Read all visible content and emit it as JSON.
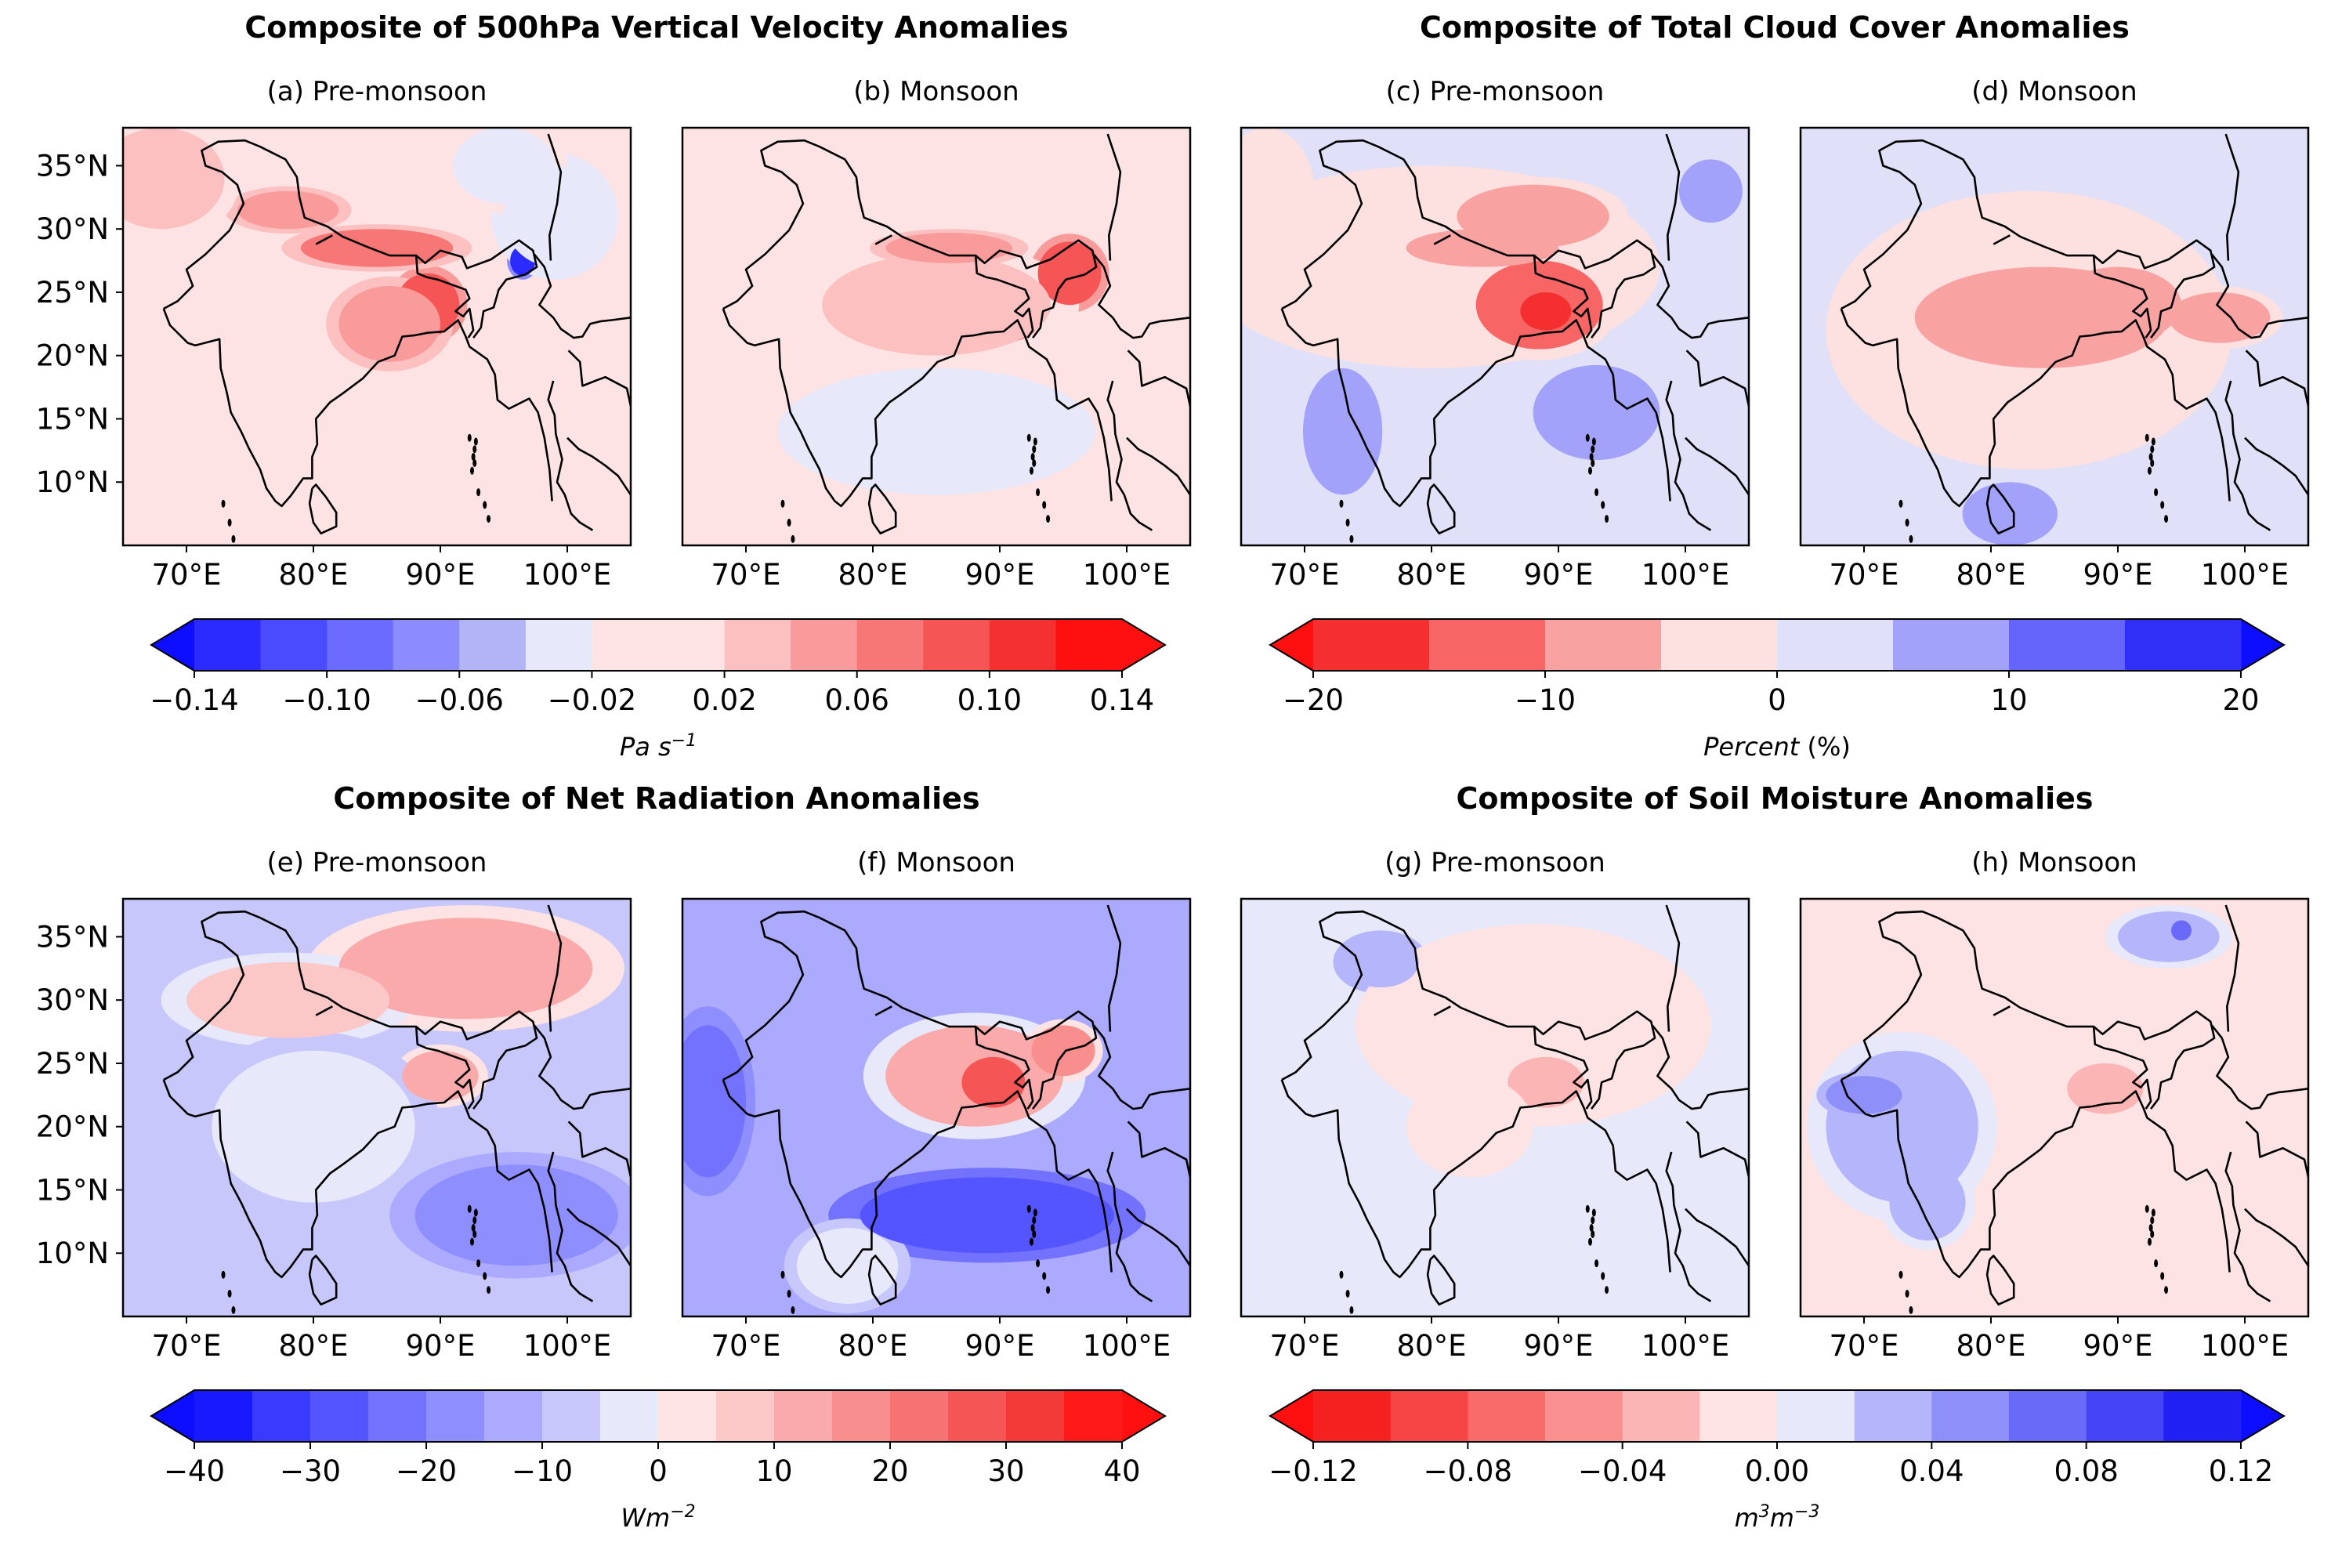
{
  "groups": [
    {
      "title": "Composite of 500hPa Vertical Velocity Anomalies",
      "colorbar": 0
    },
    {
      "title": "Composite of Total Cloud Cover Anomalies",
      "colorbar": 1
    },
    {
      "title": "Composite of Net Radiation Anomalies",
      "colorbar": 2
    },
    {
      "title": "Composite of Soil Moisture Anomalies",
      "colorbar": 3
    }
  ],
  "colors": {
    "blue_full": "#0d0dff",
    "red_full": "#ff1010",
    "neutral_blue": "#e8e8fb",
    "neutral_red": "#fde3e3",
    "coast": "#000000"
  },
  "chart_data": [
    {
      "type": "heatmap",
      "id": "a",
      "title": "(a) Pre-monsoon",
      "variable": "500hPa vertical velocity anomaly",
      "units": "Pa s⁻¹",
      "xlim": [
        65,
        105
      ],
      "ylim": [
        5,
        38
      ],
      "xticks": [
        "70°E",
        "80°E",
        "90°E",
        "100°E"
      ],
      "yticks": [
        "35°N",
        "30°N",
        "25°N",
        "20°N",
        "15°N",
        "10°N"
      ],
      "background": -0.01,
      "features": [
        {
          "lon": 89,
          "lat": 24,
          "rx": 2.5,
          "ry": 2.5,
          "v": 0.09
        },
        {
          "lon": 86,
          "lat": 22.5,
          "rx": 4,
          "ry": 3,
          "v": 0.05
        },
        {
          "lon": 85,
          "lat": 28.5,
          "rx": 6,
          "ry": 1.5,
          "v": 0.06
        },
        {
          "lon": 78,
          "lat": 31.5,
          "rx": 4,
          "ry": 1.5,
          "v": 0.05
        },
        {
          "lon": 68,
          "lat": 34,
          "rx": 5,
          "ry": 4,
          "v": 0.03
        },
        {
          "lon": 96.5,
          "lat": 27.5,
          "rx": 1,
          "ry": 1.2,
          "v": -0.14
        },
        {
          "lon": 99,
          "lat": 31,
          "rx": 4,
          "ry": 4,
          "v": -0.04
        },
        {
          "lon": 95,
          "lat": 35,
          "rx": 4,
          "ry": 3,
          "v": -0.03
        }
      ]
    },
    {
      "type": "heatmap",
      "id": "b",
      "title": "(b) Monsoon",
      "variable": "500hPa vertical velocity anomaly",
      "units": "Pa s⁻¹",
      "xlim": [
        65,
        105
      ],
      "ylim": [
        5,
        38
      ],
      "xticks": [
        "70°E",
        "80°E",
        "90°E",
        "100°E"
      ],
      "yticks": [],
      "background": -0.01,
      "features": [
        {
          "lon": 90,
          "lat": 22.5,
          "rx": 3,
          "ry": 1.5,
          "v": 0.06
        },
        {
          "lon": 95.5,
          "lat": 26.5,
          "rx": 2.5,
          "ry": 2.5,
          "v": 0.09
        },
        {
          "lon": 85,
          "lat": 24,
          "rx": 9,
          "ry": 4,
          "v": 0.03
        },
        {
          "lon": 86,
          "lat": 28.5,
          "rx": 5,
          "ry": 1.2,
          "v": 0.05
        },
        {
          "lon": 85,
          "lat": 14,
          "rx": 10,
          "ry": 4,
          "v": -0.04
        },
        {
          "lon": 72,
          "lat": 30,
          "rx": 5,
          "ry": 5,
          "v": -0.02
        }
      ]
    },
    {
      "type": "heatmap",
      "id": "c",
      "title": "(c) Pre-monsoon",
      "variable": "total cloud cover anomaly",
      "units": "%",
      "xlim": [
        65,
        105
      ],
      "ylim": [
        5,
        38
      ],
      "xticks": [
        "70°E",
        "80°E",
        "90°E",
        "100°E"
      ],
      "yticks": [],
      "background": 3,
      "features": [
        {
          "lon": 80,
          "lat": 27,
          "rx": 18,
          "ry": 8,
          "v": -3
        },
        {
          "lon": 88.5,
          "lat": 24,
          "rx": 5,
          "ry": 3.5,
          "v": -12
        },
        {
          "lon": 89,
          "lat": 23.5,
          "rx": 2,
          "ry": 1.5,
          "v": -17
        },
        {
          "lon": 88,
          "lat": 31,
          "rx": 6,
          "ry": 2.5,
          "v": -8
        },
        {
          "lon": 84,
          "lat": 28.5,
          "rx": 6,
          "ry": 1.5,
          "v": -8
        },
        {
          "lon": 67,
          "lat": 33,
          "rx": 3,
          "ry": 4,
          "v": -5
        },
        {
          "lon": 93,
          "lat": 15.5,
          "rx": 4,
          "ry": 3,
          "v": 8
        },
        {
          "lon": 73,
          "lat": 14,
          "rx": 2.5,
          "ry": 4,
          "v": 8
        },
        {
          "lon": 102,
          "lat": 33,
          "rx": 2,
          "ry": 2,
          "v": 8
        }
      ]
    },
    {
      "type": "heatmap",
      "id": "d",
      "title": "(d) Monsoon",
      "variable": "total cloud cover anomaly",
      "units": "%",
      "xlim": [
        65,
        105
      ],
      "ylim": [
        5,
        38
      ],
      "xticks": [
        "70°E",
        "80°E",
        "90°E",
        "100°E"
      ],
      "yticks": [],
      "background": 3,
      "features": [
        {
          "lon": 83,
          "lat": 22,
          "rx": 16,
          "ry": 11,
          "v": -3
        },
        {
          "lon": 84,
          "lat": 23,
          "rx": 10,
          "ry": 4,
          "v": -8
        },
        {
          "lon": 90,
          "lat": 24,
          "rx": 5,
          "ry": 3,
          "v": -10
        },
        {
          "lon": 98,
          "lat": 23,
          "rx": 4,
          "ry": 2,
          "v": -8
        },
        {
          "lon": 81.5,
          "lat": 7.5,
          "rx": 3,
          "ry": 2,
          "v": 8
        },
        {
          "lon": 97,
          "lat": 36,
          "rx": 8,
          "ry": 2,
          "v": 2
        }
      ]
    },
    {
      "type": "heatmap",
      "id": "e",
      "title": "(e) Pre-monsoon",
      "variable": "net radiation anomaly",
      "units": "W m⁻²",
      "xlim": [
        65,
        105
      ],
      "ylim": [
        5,
        38
      ],
      "xticks": [
        "70°E",
        "80°E",
        "90°E",
        "100°E"
      ],
      "yticks": [
        "35°N",
        "30°N",
        "25°N",
        "20°N",
        "15°N",
        "10°N"
      ],
      "background": -10,
      "features": [
        {
          "lon": 92,
          "lat": 32.5,
          "rx": 10,
          "ry": 4,
          "v": 10
        },
        {
          "lon": 90,
          "lat": 24,
          "rx": 3,
          "ry": 2,
          "v": 12
        },
        {
          "lon": 78,
          "lat": 30,
          "rx": 8,
          "ry": 3,
          "v": 5
        },
        {
          "lon": 80,
          "lat": 20,
          "rx": 8,
          "ry": 6,
          "v": -4
        },
        {
          "lon": 96,
          "lat": 13,
          "rx": 8,
          "ry": 4,
          "v": -16
        }
      ]
    },
    {
      "type": "heatmap",
      "id": "f",
      "title": "(f) Monsoon",
      "variable": "net radiation anomaly",
      "units": "W m⁻²",
      "xlim": [
        65,
        105
      ],
      "ylim": [
        5,
        38
      ],
      "xticks": [
        "70°E",
        "80°E",
        "90°E",
        "100°E"
      ],
      "yticks": [],
      "background": -14,
      "features": [
        {
          "lon": 88,
          "lat": 24,
          "rx": 7,
          "ry": 4,
          "v": 10
        },
        {
          "lon": 89.5,
          "lat": 23.5,
          "rx": 2.5,
          "ry": 2,
          "v": 25
        },
        {
          "lon": 95,
          "lat": 26,
          "rx": 2.5,
          "ry": 2,
          "v": 16
        },
        {
          "lon": 89,
          "lat": 13,
          "rx": 10,
          "ry": 3,
          "v": -28
        },
        {
          "lon": 67,
          "lat": 22,
          "rx": 3,
          "ry": 6,
          "v": -24
        },
        {
          "lon": 78,
          "lat": 9,
          "rx": 4,
          "ry": 3,
          "v": -4
        }
      ]
    },
    {
      "type": "heatmap",
      "id": "g",
      "title": "(g) Pre-monsoon",
      "variable": "soil moisture anomaly",
      "units": "m³ m⁻³",
      "xlim": [
        65,
        105
      ],
      "ylim": [
        5,
        38
      ],
      "xticks": [
        "70°E",
        "80°E",
        "90°E",
        "100°E"
      ],
      "yticks": [],
      "background": 0.01,
      "features": [
        {
          "lon": 88,
          "lat": 28,
          "rx": 14,
          "ry": 8,
          "v": -0.01
        },
        {
          "lon": 89,
          "lat": 23.5,
          "rx": 3,
          "ry": 2,
          "v": -0.03
        },
        {
          "lon": 83,
          "lat": 20,
          "rx": 5,
          "ry": 4,
          "v": -0.01
        },
        {
          "lon": 76,
          "lat": 33,
          "rx": 3,
          "ry": 2,
          "v": 0.03
        }
      ]
    },
    {
      "type": "heatmap",
      "id": "h",
      "title": "(h) Monsoon",
      "variable": "soil moisture anomaly",
      "units": "m³ m⁻³",
      "xlim": [
        65,
        105
      ],
      "ylim": [
        5,
        38
      ],
      "xticks": [
        "70°E",
        "80°E",
        "90°E",
        "100°E"
      ],
      "yticks": [],
      "background": -0.01,
      "features": [
        {
          "lon": 73,
          "lat": 20,
          "rx": 6,
          "ry": 6,
          "v": 0.03
        },
        {
          "lon": 70,
          "lat": 22.5,
          "rx": 3,
          "ry": 1.5,
          "v": 0.05
        },
        {
          "lon": 75,
          "lat": 14,
          "rx": 3,
          "ry": 3,
          "v": 0.03
        },
        {
          "lon": 89,
          "lat": 23,
          "rx": 3,
          "ry": 2,
          "v": -0.03
        },
        {
          "lon": 94,
          "lat": 35,
          "rx": 4,
          "ry": 2,
          "v": 0.03
        },
        {
          "lon": 95,
          "lat": 35.5,
          "rx": 0.8,
          "ry": 0.8,
          "v": 0.07
        }
      ]
    }
  ],
  "colorbars": [
    {
      "label_main": "Pa s",
      "label_sup": "−1",
      "levels": [
        -0.14,
        -0.12,
        -0.1,
        -0.08,
        -0.06,
        -0.04,
        -0.02,
        0.02,
        0.04,
        0.06,
        0.08,
        0.1,
        0.12,
        0.14
      ],
      "colors": [
        "#2b2bff",
        "#4a4aff",
        "#6b6bff",
        "#8c8cff",
        "#b3b3f8",
        "#e8e8fb",
        "#fde3e3",
        "#fcc0c0",
        "#f99b9b",
        "#f77777",
        "#f55555",
        "#f43030",
        "#ff1010"
      ],
      "under": "#0d0dff",
      "over": "#ff1010",
      "ticks": [
        "−0.14",
        "−0.10",
        "−0.06",
        "−0.02",
        "0.02",
        "0.06",
        "0.10",
        "0.14"
      ],
      "tick_values": [
        -0.14,
        -0.1,
        -0.06,
        -0.02,
        0.02,
        0.06,
        0.1,
        0.14
      ]
    },
    {
      "label_main": "Percent",
      "label_tail": " (%)",
      "levels": [
        -20,
        -15,
        -10,
        -5,
        0,
        5,
        10,
        15,
        20
      ],
      "colors": [
        "#f52f2f",
        "#f76565",
        "#f9a2a2",
        "#fde0e0",
        "#e0e0f8",
        "#a2a2fa",
        "#6565fc",
        "#2f2ff7"
      ],
      "under": "#ff1010",
      "over": "#0d0dff",
      "ticks": [
        "−20",
        "−10",
        "0",
        "10",
        "20"
      ],
      "tick_values": [
        -20,
        -10,
        0,
        10,
        20
      ]
    },
    {
      "label_main": "Wm",
      "label_sup": "−2",
      "levels": [
        -40,
        -35,
        -30,
        -25,
        -20,
        -15,
        -10,
        -5,
        0,
        5,
        10,
        15,
        20,
        25,
        30,
        35,
        40
      ],
      "colors": [
        "#1919ff",
        "#3939ff",
        "#5555ff",
        "#7272ff",
        "#8e8eff",
        "#abaaff",
        "#c7c7fb",
        "#e8e8fb",
        "#fde3e3",
        "#fcc7c7",
        "#faaaaa",
        "#f88e8e",
        "#f77272",
        "#f55555",
        "#f43939",
        "#ff1919"
      ],
      "under": "#0d0dff",
      "over": "#ff1010",
      "ticks": [
        "−40",
        "−30",
        "−20",
        "−10",
        "0",
        "10",
        "20",
        "30",
        "40"
      ],
      "tick_values": [
        -40,
        -30,
        -20,
        -10,
        0,
        10,
        20,
        30,
        40
      ]
    },
    {
      "label_main": "m",
      "label_sup": "3",
      "label_main2": "m",
      "label_sup2": "−3",
      "levels": [
        -0.12,
        -0.1,
        -0.08,
        -0.06,
        -0.04,
        -0.02,
        0.0,
        0.02,
        0.04,
        0.06,
        0.08,
        0.1,
        0.12
      ],
      "colors": [
        "#f52020",
        "#f74545",
        "#f96a6a",
        "#fa8f8f",
        "#fcb5b5",
        "#fde3e3",
        "#e8e8fb",
        "#b5b5fc",
        "#8f8ffa",
        "#6a6af9",
        "#4545f7",
        "#2020f5"
      ],
      "under": "#ff1010",
      "over": "#0d0dff",
      "ticks": [
        "−0.12",
        "−0.08",
        "−0.04",
        "0.00",
        "0.04",
        "0.08",
        "0.12"
      ],
      "tick_values": [
        -0.12,
        -0.08,
        -0.04,
        0.0,
        0.04,
        0.08,
        0.12
      ]
    }
  ]
}
